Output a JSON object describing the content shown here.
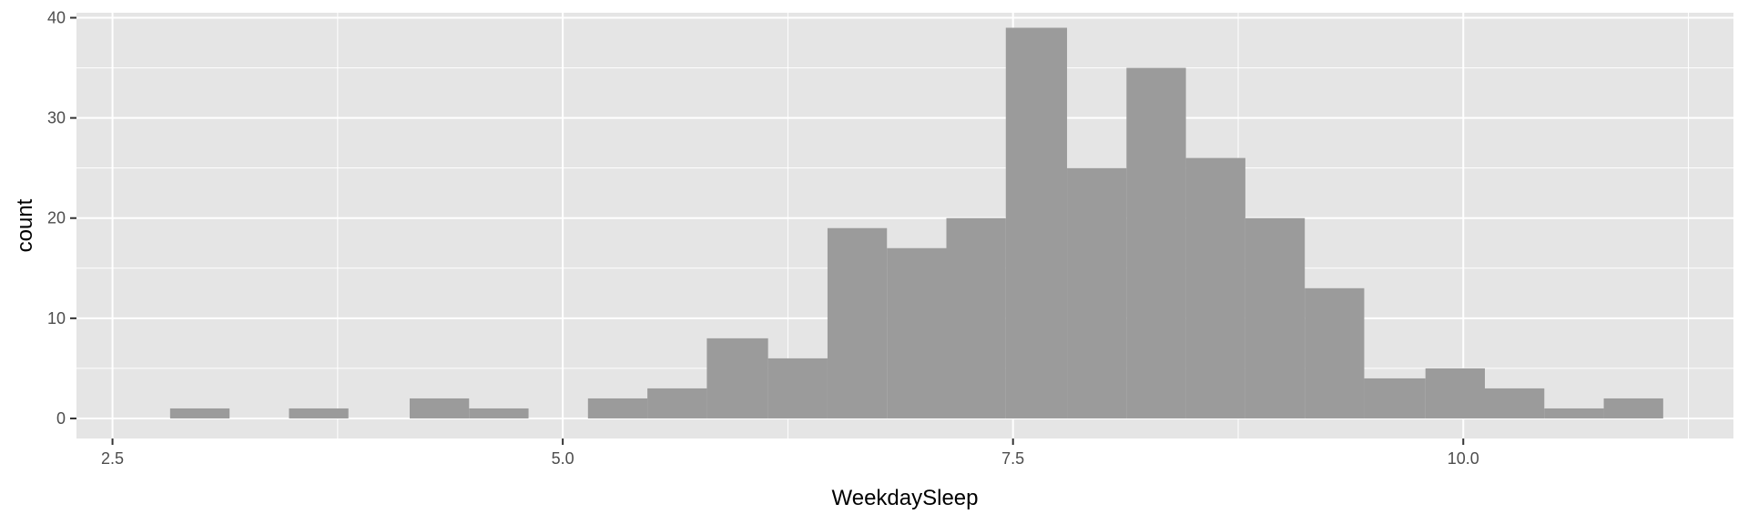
{
  "chart_data": {
    "type": "bar",
    "subtype": "histogram",
    "title": "",
    "xlabel": "WeekdaySleep",
    "ylabel": "count",
    "xlim": [
      2.3,
      11.5
    ],
    "ylim": [
      -2,
      40.5
    ],
    "x_ticks": [
      2.5,
      5.0,
      7.5,
      10.0
    ],
    "x_tick_labels": [
      "2.5",
      "5.0",
      "7.5",
      "10.0"
    ],
    "y_ticks": [
      0,
      10,
      20,
      30,
      40
    ],
    "y_tick_labels": [
      "0",
      "10",
      "20",
      "30",
      "40"
    ],
    "grid": true,
    "legend": "none",
    "colors": {
      "panel": "#e5e5e5",
      "grid": "#ffffff",
      "bar": "#999999",
      "tick_text": "#4d4d4d",
      "title_text": "#000000"
    },
    "bins": [
      {
        "x0": 2.82,
        "x1": 3.15,
        "count": 1
      },
      {
        "x0": 3.15,
        "x1": 3.48,
        "count": 0
      },
      {
        "x0": 3.48,
        "x1": 3.81,
        "count": 1
      },
      {
        "x0": 3.81,
        "x1": 4.15,
        "count": 0
      },
      {
        "x0": 4.15,
        "x1": 4.48,
        "count": 2
      },
      {
        "x0": 4.48,
        "x1": 4.81,
        "count": 1
      },
      {
        "x0": 4.81,
        "x1": 5.14,
        "count": 0
      },
      {
        "x0": 5.14,
        "x1": 5.47,
        "count": 2
      },
      {
        "x0": 5.47,
        "x1": 5.8,
        "count": 3
      },
      {
        "x0": 5.8,
        "x1": 6.14,
        "count": 8
      },
      {
        "x0": 6.14,
        "x1": 6.47,
        "count": 6
      },
      {
        "x0": 6.47,
        "x1": 6.8,
        "count": 19
      },
      {
        "x0": 6.8,
        "x1": 7.13,
        "count": 17
      },
      {
        "x0": 7.13,
        "x1": 7.46,
        "count": 20
      },
      {
        "x0": 7.46,
        "x1": 7.8,
        "count": 39
      },
      {
        "x0": 7.8,
        "x1": 8.13,
        "count": 25
      },
      {
        "x0": 8.13,
        "x1": 8.46,
        "count": 35
      },
      {
        "x0": 8.46,
        "x1": 8.79,
        "count": 26
      },
      {
        "x0": 8.79,
        "x1": 9.12,
        "count": 20
      },
      {
        "x0": 9.12,
        "x1": 9.45,
        "count": 13
      },
      {
        "x0": 9.45,
        "x1": 9.79,
        "count": 4
      },
      {
        "x0": 9.79,
        "x1": 10.12,
        "count": 5
      },
      {
        "x0": 10.12,
        "x1": 10.45,
        "count": 3
      },
      {
        "x0": 10.45,
        "x1": 10.78,
        "count": 1
      },
      {
        "x0": 10.78,
        "x1": 11.11,
        "count": 2
      }
    ]
  }
}
